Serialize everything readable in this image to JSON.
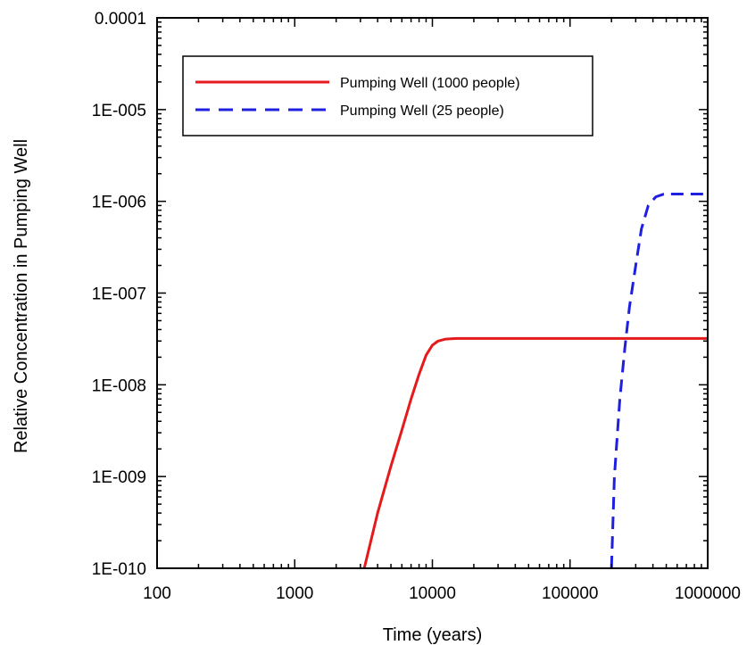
{
  "chart_data": {
    "type": "line",
    "title": "",
    "xlabel": "Time (years)",
    "ylabel": "Relative Concentration in Pumping Well",
    "xscale": "log",
    "yscale": "log",
    "xlim": [
      100,
      1000000
    ],
    "ylim": [
      1e-10,
      0.0001
    ],
    "x_ticks": [
      100,
      1000,
      10000,
      100000,
      1000000
    ],
    "x_tick_labels": [
      "100",
      "1000",
      "10000",
      "100000",
      "1000000"
    ],
    "y_ticks": [
      0.0001,
      1e-05,
      1e-06,
      1e-07,
      1e-08,
      1e-09,
      1e-10
    ],
    "y_tick_labels": [
      "0.0001",
      "1E-005",
      "1E-006",
      "1E-007",
      "1E-008",
      "1E-009",
      "1E-010"
    ],
    "grid": false,
    "legend_position": "top-left",
    "series": [
      {
        "name": "Pumping Well (1000 people)",
        "color": "#e41a1c",
        "dash": "solid",
        "points": [
          [
            3200,
            1e-10
          ],
          [
            4000,
            4e-10
          ],
          [
            5000,
            1.3e-09
          ],
          [
            6000,
            3.2e-09
          ],
          [
            7000,
            7e-09
          ],
          [
            8000,
            1.3e-08
          ],
          [
            9000,
            2.1e-08
          ],
          [
            10000,
            2.7e-08
          ],
          [
            11000,
            3e-08
          ],
          [
            12500,
            3.15e-08
          ],
          [
            15000,
            3.2e-08
          ],
          [
            1000000,
            3.2e-08
          ]
        ]
      },
      {
        "name": "Pumping Well (25 people)",
        "color": "#1f1fe0",
        "dash": "dashed",
        "points": [
          [
            200000,
            1e-10
          ],
          [
            210000,
            1e-09
          ],
          [
            230000,
            7e-09
          ],
          [
            250000,
            2.5e-08
          ],
          [
            270000,
            7e-08
          ],
          [
            300000,
            2e-07
          ],
          [
            330000,
            5e-07
          ],
          [
            370000,
            9e-07
          ],
          [
            420000,
            1.12e-06
          ],
          [
            480000,
            1.2e-06
          ],
          [
            1000000,
            1.2e-06
          ]
        ]
      }
    ]
  }
}
